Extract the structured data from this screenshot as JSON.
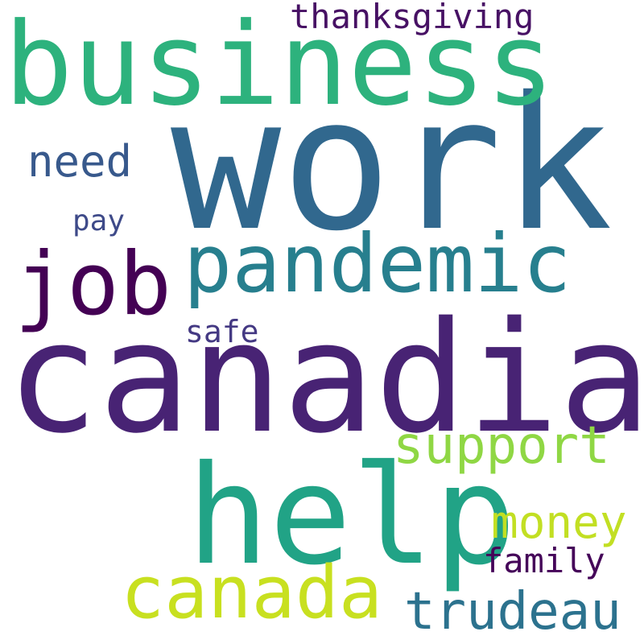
{
  "word_cloud": {
    "background": "#ffffff",
    "words": [
      {
        "text": "work",
        "color": "#31688e"
      },
      {
        "text": "canadian",
        "color": "#482374"
      },
      {
        "text": "business",
        "color": "#2db27d"
      },
      {
        "text": "help",
        "color": "#21a386"
      },
      {
        "text": "pandemic",
        "color": "#277f8e"
      },
      {
        "text": "job",
        "color": "#440154"
      },
      {
        "text": "canada",
        "color": "#c8e020"
      },
      {
        "text": "trudeau",
        "color": "#2c728e"
      },
      {
        "text": "support",
        "color": "#8fd744"
      },
      {
        "text": "money",
        "color": "#c2df23"
      },
      {
        "text": "thanksgiving",
        "color": "#471164"
      },
      {
        "text": "need",
        "color": "#38598c"
      },
      {
        "text": "family",
        "color": "#450559"
      },
      {
        "text": "safe",
        "color": "#443983"
      },
      {
        "text": "pay",
        "color": "#3e4a89"
      }
    ]
  }
}
